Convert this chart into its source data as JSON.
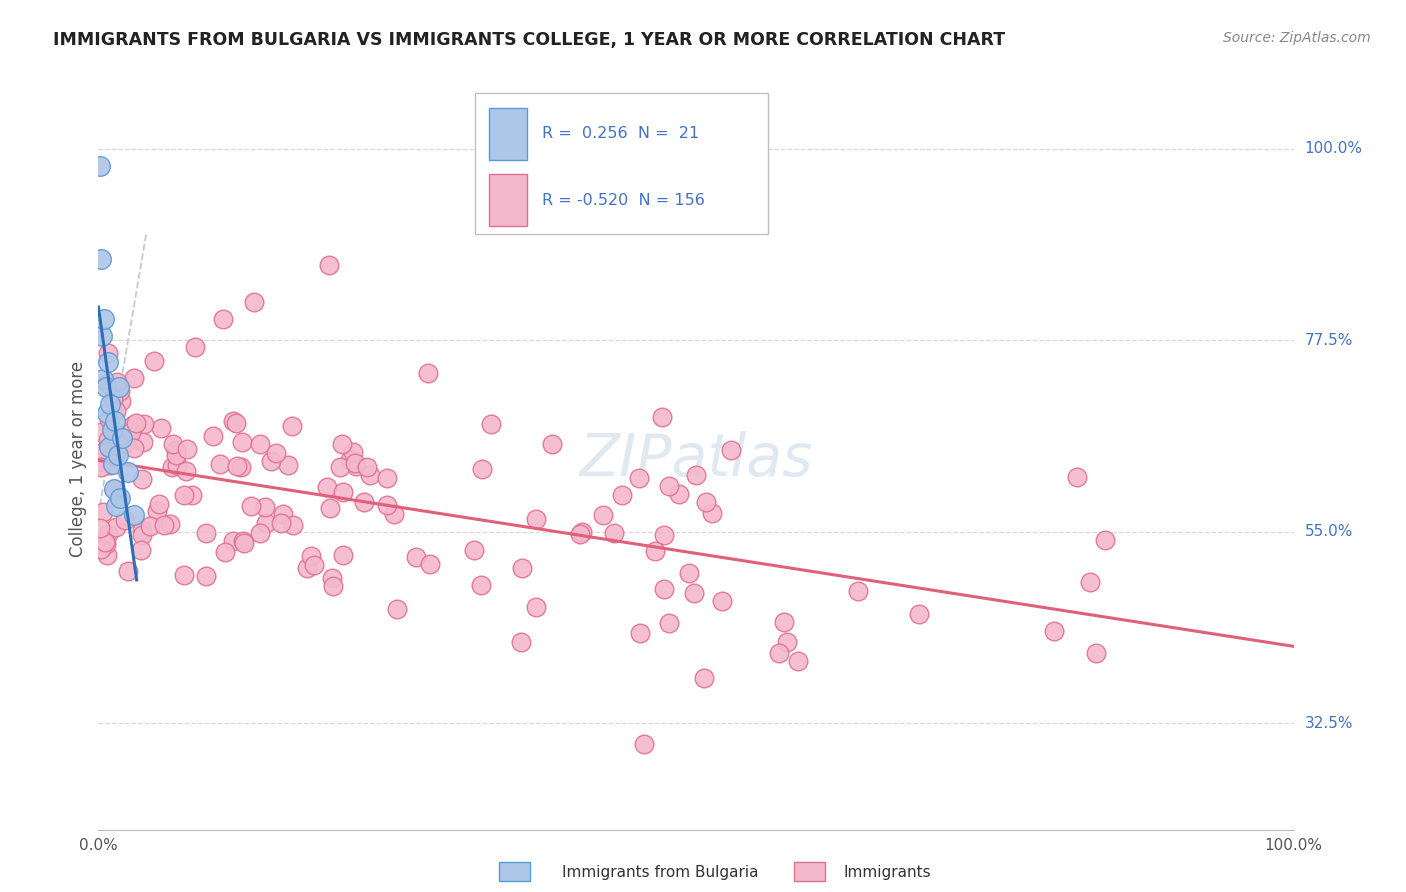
{
  "title": "IMMIGRANTS FROM BULGARIA VS IMMIGRANTS COLLEGE, 1 YEAR OR MORE CORRELATION CHART",
  "source_text": "Source: ZipAtlas.com",
  "ylabel": "College, 1 year or more",
  "legend_r1": "R =  0.256  N =  21",
  "legend_r2": "R = -0.520  N = 156",
  "legend_label1": "Immigrants from Bulgaria",
  "legend_label2": "Immigrants",
  "blue_color": "#aec6e8",
  "blue_edge": "#5b9bd5",
  "pink_color": "#f4b8cc",
  "pink_edge": "#e07090",
  "blue_line_color": "#2e6eb5",
  "pink_line_color": "#e0607a",
  "text_color_blue": "#4472c4",
  "y_tick_labels": [
    "32.5%",
    "55.0%",
    "77.5%",
    "100.0%"
  ],
  "y_tick_values": [
    0.325,
    0.55,
    0.775,
    1.0
  ],
  "xlim": [
    0.0,
    1.0
  ],
  "ylim": [
    0.2,
    1.05
  ],
  "bg_color": "#ffffff",
  "grid_color": "#d8d8d8",
  "blue_seed": 77,
  "pink_seed": 42,
  "watermark": "ZIPatlas"
}
